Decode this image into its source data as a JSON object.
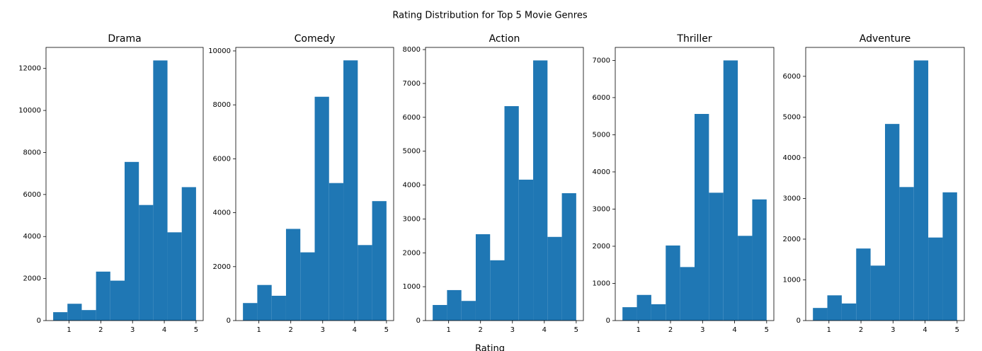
{
  "title": "Rating Distribution for Top 5 Movie Genres",
  "xlabel": "Rating",
  "chart_data": [
    {
      "type": "histogram",
      "title": "Drama",
      "color": "#1f77b4",
      "bins": [
        0.5,
        0.95,
        1.4,
        1.85,
        2.3,
        2.75,
        3.2,
        3.65,
        4.1,
        4.55,
        5.0
      ],
      "values": [
        400,
        800,
        500,
        2330,
        1900,
        7550,
        5500,
        12380,
        4200,
        6350
      ],
      "xlim": [
        0.275,
        5.225
      ],
      "xticks": [
        1,
        2,
        3,
        4,
        5
      ],
      "ylim": [
        0,
        13000
      ],
      "yticks": [
        0,
        2000,
        4000,
        6000,
        8000,
        10000,
        12000
      ]
    },
    {
      "type": "histogram",
      "title": "Comedy",
      "color": "#1f77b4",
      "bins": [
        0.5,
        0.95,
        1.4,
        1.85,
        2.3,
        2.75,
        3.2,
        3.65,
        4.1,
        4.55,
        5.0
      ],
      "values": [
        650,
        1320,
        920,
        3400,
        2530,
        8300,
        5100,
        9650,
        2800,
        4430
      ],
      "xlim": [
        0.275,
        5.225
      ],
      "xticks": [
        1,
        2,
        3,
        4,
        5
      ],
      "ylim": [
        0,
        10130
      ],
      "yticks": [
        0,
        2000,
        4000,
        6000,
        8000,
        10000
      ]
    },
    {
      "type": "histogram",
      "title": "Action",
      "color": "#1f77b4",
      "bins": [
        0.5,
        0.95,
        1.4,
        1.85,
        2.3,
        2.75,
        3.2,
        3.65,
        4.1,
        4.55,
        5.0
      ],
      "values": [
        460,
        900,
        580,
        2550,
        1780,
        6330,
        4160,
        7680,
        2470,
        3760
      ],
      "xlim": [
        0.275,
        5.225
      ],
      "xticks": [
        1,
        2,
        3,
        4,
        5
      ],
      "ylim": [
        0,
        8064
      ],
      "yticks": [
        0,
        1000,
        2000,
        3000,
        4000,
        5000,
        6000,
        7000,
        8000
      ]
    },
    {
      "type": "histogram",
      "title": "Thriller",
      "color": "#1f77b4",
      "bins": [
        0.5,
        0.95,
        1.4,
        1.85,
        2.3,
        2.75,
        3.2,
        3.65,
        4.1,
        4.55,
        5.0
      ],
      "values": [
        360,
        690,
        440,
        2020,
        1440,
        5560,
        3440,
        7000,
        2280,
        3260
      ],
      "xlim": [
        0.275,
        5.225
      ],
      "xticks": [
        1,
        2,
        3,
        4,
        5
      ],
      "ylim": [
        0,
        7350
      ],
      "yticks": [
        0,
        1000,
        2000,
        3000,
        4000,
        5000,
        6000,
        7000
      ]
    },
    {
      "type": "histogram",
      "title": "Adventure",
      "color": "#1f77b4",
      "bins": [
        0.5,
        0.95,
        1.4,
        1.85,
        2.3,
        2.75,
        3.2,
        3.65,
        4.1,
        4.55,
        5.0
      ],
      "values": [
        310,
        620,
        420,
        1770,
        1350,
        4830,
        3280,
        6390,
        2040,
        3150
      ],
      "xlim": [
        0.275,
        5.225
      ],
      "xticks": [
        1,
        2,
        3,
        4,
        5
      ],
      "ylim": [
        0,
        6710
      ],
      "yticks": [
        0,
        1000,
        2000,
        3000,
        4000,
        5000,
        6000
      ]
    }
  ]
}
